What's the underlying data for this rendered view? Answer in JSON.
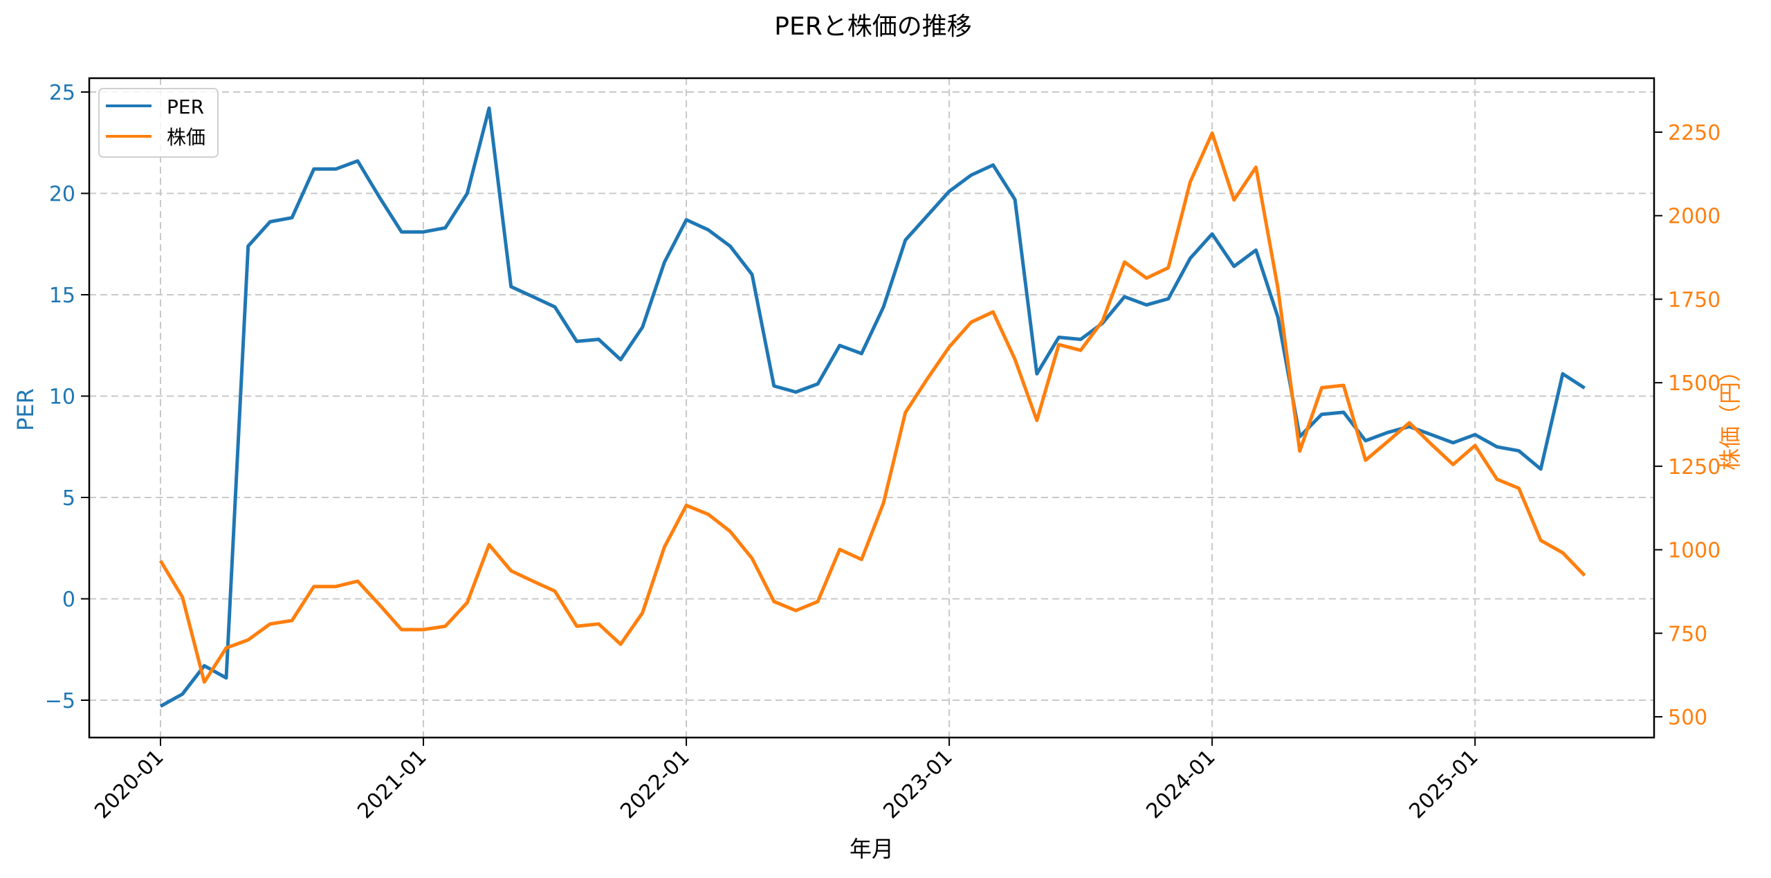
{
  "chart_data": {
    "type": "line",
    "title": "PERと株価の推移",
    "xlabel": "年月",
    "ylabel": "PER",
    "y2label": "株価（円）",
    "ylim": [
      -6.9,
      26.1
    ],
    "y2lim": [
      440,
      2370
    ],
    "yticks": [
      -5,
      0,
      5,
      10,
      15,
      20,
      25
    ],
    "y2ticks": [
      500,
      750,
      1000,
      1250,
      1500,
      1750,
      2000,
      2250
    ],
    "xticks": [
      "2020-01",
      "2021-01",
      "2022-01",
      "2023-01",
      "2024-01",
      "2025-01"
    ],
    "grid": true,
    "legend_position": "upper left",
    "x": [
      "2020-01",
      "2020-02",
      "2020-03",
      "2020-04",
      "2020-05",
      "2020-06",
      "2020-07",
      "2020-08",
      "2020-09",
      "2020-10",
      "2020-11",
      "2020-12",
      "2021-01",
      "2021-02",
      "2021-03",
      "2021-04",
      "2021-05",
      "2021-06",
      "2021-07",
      "2021-08",
      "2021-09",
      "2021-10",
      "2021-11",
      "2021-12",
      "2022-01",
      "2022-02",
      "2022-03",
      "2022-04",
      "2022-05",
      "2022-06",
      "2022-07",
      "2022-08",
      "2022-09",
      "2022-10",
      "2022-11",
      "2022-12",
      "2023-01",
      "2023-02",
      "2023-03",
      "2023-04",
      "2023-05",
      "2023-06",
      "2023-07",
      "2023-08",
      "2023-09",
      "2023-10",
      "2023-11",
      "2023-12",
      "2024-01",
      "2024-02",
      "2024-03",
      "2024-04",
      "2024-05",
      "2024-06",
      "2024-07",
      "2024-08",
      "2024-09",
      "2024-10",
      "2024-11",
      "2024-12",
      "2025-01",
      "2025-02",
      "2025-03",
      "2025-04",
      "2025-05",
      "2025-06"
    ],
    "series": [
      {
        "name": "PER",
        "axis": "left",
        "color": "#1f77b4",
        "values": [
          -5.3,
          -4.7,
          -3.3,
          -3.9,
          17.4,
          18.6,
          18.8,
          21.2,
          21.2,
          21.6,
          19.8,
          18.1,
          18.1,
          18.3,
          20.0,
          24.2,
          15.4,
          14.9,
          14.4,
          12.7,
          12.8,
          11.8,
          13.4,
          16.6,
          18.7,
          18.2,
          17.4,
          16.0,
          10.5,
          10.2,
          10.6,
          12.5,
          12.1,
          14.4,
          17.7,
          18.9,
          20.1,
          20.9,
          21.4,
          19.7,
          11.1,
          12.9,
          12.8,
          13.6,
          14.9,
          14.5,
          14.8,
          16.8,
          18.0,
          16.4,
          17.2,
          13.9,
          8.0,
          9.1,
          9.2,
          7.8,
          8.2,
          8.5,
          8.1,
          7.7,
          8.1,
          7.5,
          7.3,
          6.4,
          11.1,
          10.4
        ]
      },
      {
        "name": "株価",
        "axis": "right",
        "color": "#ff7f0e",
        "values": [
          967,
          858,
          604,
          706,
          730,
          778,
          788,
          890,
          890,
          906,
          835,
          761,
          761,
          771,
          842,
          1015,
          937,
          906,
          876,
          771,
          778,
          717,
          811,
          1008,
          1133,
          1106,
          1055,
          974,
          845,
          818,
          845,
          1001,
          971,
          1140,
          1411,
          1512,
          1607,
          1681,
          1712,
          1570,
          1387,
          1614,
          1597,
          1685,
          1861,
          1813,
          1844,
          2101,
          2247,
          2047,
          2145,
          1783,
          1295,
          1485,
          1492,
          1268,
          1323,
          1380,
          1316,
          1255,
          1312,
          1211,
          1184,
          1028,
          991,
          923
        ]
      }
    ]
  },
  "labels": {
    "title": "PERと株価の推移",
    "xlabel": "年月",
    "ylabel_left": "PER",
    "ylabel_right": "株価（円）",
    "legend": [
      "PER",
      "株価"
    ]
  },
  "colors": {
    "per": "#1f77b4",
    "price": "#ff7f0e",
    "grid": "#c8c8c8",
    "axis": "#000000"
  }
}
